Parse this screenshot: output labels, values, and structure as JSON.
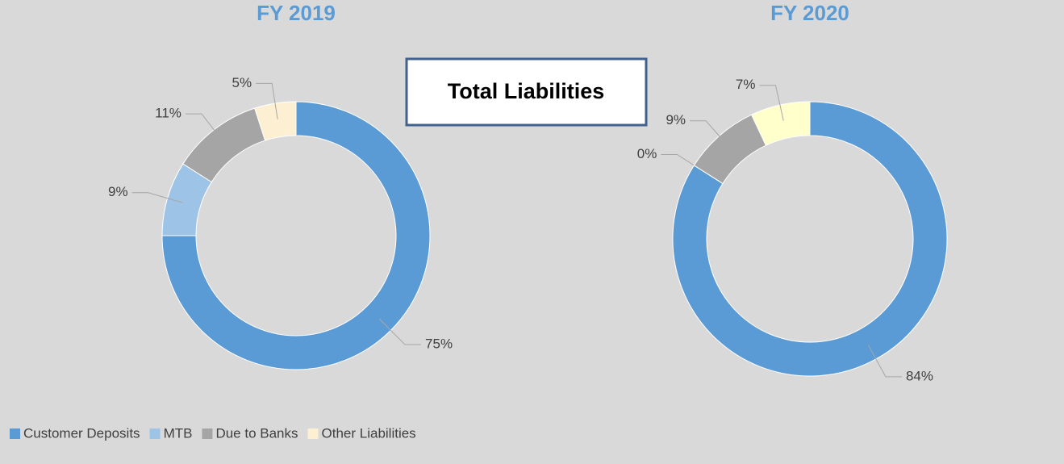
{
  "title": "Total Liabilities",
  "chart_data": [
    {
      "type": "donut",
      "title": "FY 2019",
      "categories": [
        "Customer Deposits",
        "MTB",
        "Due to Banks",
        "Other Liabilities"
      ],
      "values": [
        75,
        9,
        11,
        5
      ],
      "value_labels": [
        "75%",
        "9%",
        "11%",
        "5%"
      ],
      "colors": [
        "#5b9bd5",
        "#9dc3e6",
        "#a5a5a5",
        "#fdf0d2"
      ]
    },
    {
      "type": "donut",
      "title": "FY 2020",
      "categories": [
        "Customer Deposits",
        "MTB",
        "Due to Banks",
        "Other Liabilities"
      ],
      "values": [
        84,
        0,
        9,
        7
      ],
      "value_labels": [
        "84%",
        "0%",
        "9%",
        "7%"
      ],
      "colors": [
        "#5b9bd5",
        "#9dc3e6",
        "#a5a5a5",
        "#ffffcc"
      ]
    }
  ]
}
